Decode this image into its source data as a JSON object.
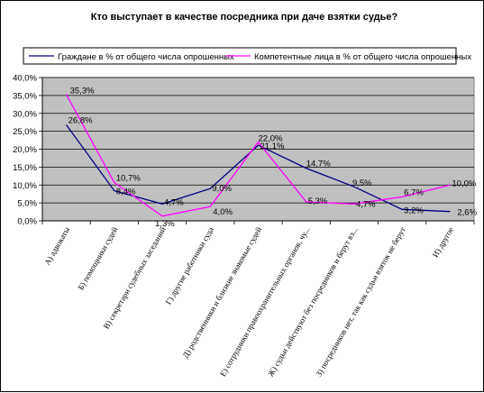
{
  "chart_data": {
    "type": "line",
    "title": "Кто выступает в качестве посредника при даче взятки судье?",
    "categories": [
      "А) адвокаты",
      "Б) помощники судей",
      "В) секретари судебных заседаний",
      "Г) другие работники суда",
      "Д) родственники и близкие знакомые судей",
      "Е) сотрудники правоохранительных органов, чу...",
      "Ж) судьи действуют без посредников и берут вз...",
      "З) посредников нет, так как судьи взяток не берут",
      "И) другое"
    ],
    "ylim": [
      0,
      40
    ],
    "yticks": [
      "0,0%",
      "5,0%",
      "10,0%",
      "15,0%",
      "20,0%",
      "25,0%",
      "30,0%",
      "35,0%",
      "40,0%"
    ],
    "ytick_values": [
      0,
      5,
      10,
      15,
      20,
      25,
      30,
      35,
      40
    ],
    "grid": true,
    "legend_position": "top",
    "series": [
      {
        "name": "Граждане в % от общего числа опрошенных",
        "color": "#000080",
        "values": [
          26.8,
          8.4,
          4.7,
          9.0,
          21.1,
          14.7,
          9.5,
          3.2,
          2.6
        ],
        "labels": [
          "26,8%",
          "8,4%",
          "4,7%",
          "9,0%",
          "21,1%",
          "14,7%",
          "9,5%",
          "3,2%",
          "2,6%"
        ]
      },
      {
        "name": "Компетентные лица в % от общего числа опрошенных",
        "color": "#ff00ff",
        "values": [
          35.3,
          10.7,
          1.3,
          4.0,
          22.0,
          5.3,
          4.7,
          6.7,
          10.0
        ],
        "labels": [
          "35,3%",
          "10,7%",
          "1,3%",
          "4,0%",
          "22,0%",
          "5,3%",
          "4,7%",
          "6,7%",
          "10,0%"
        ]
      }
    ],
    "plot_background": "#c0c0c0"
  }
}
